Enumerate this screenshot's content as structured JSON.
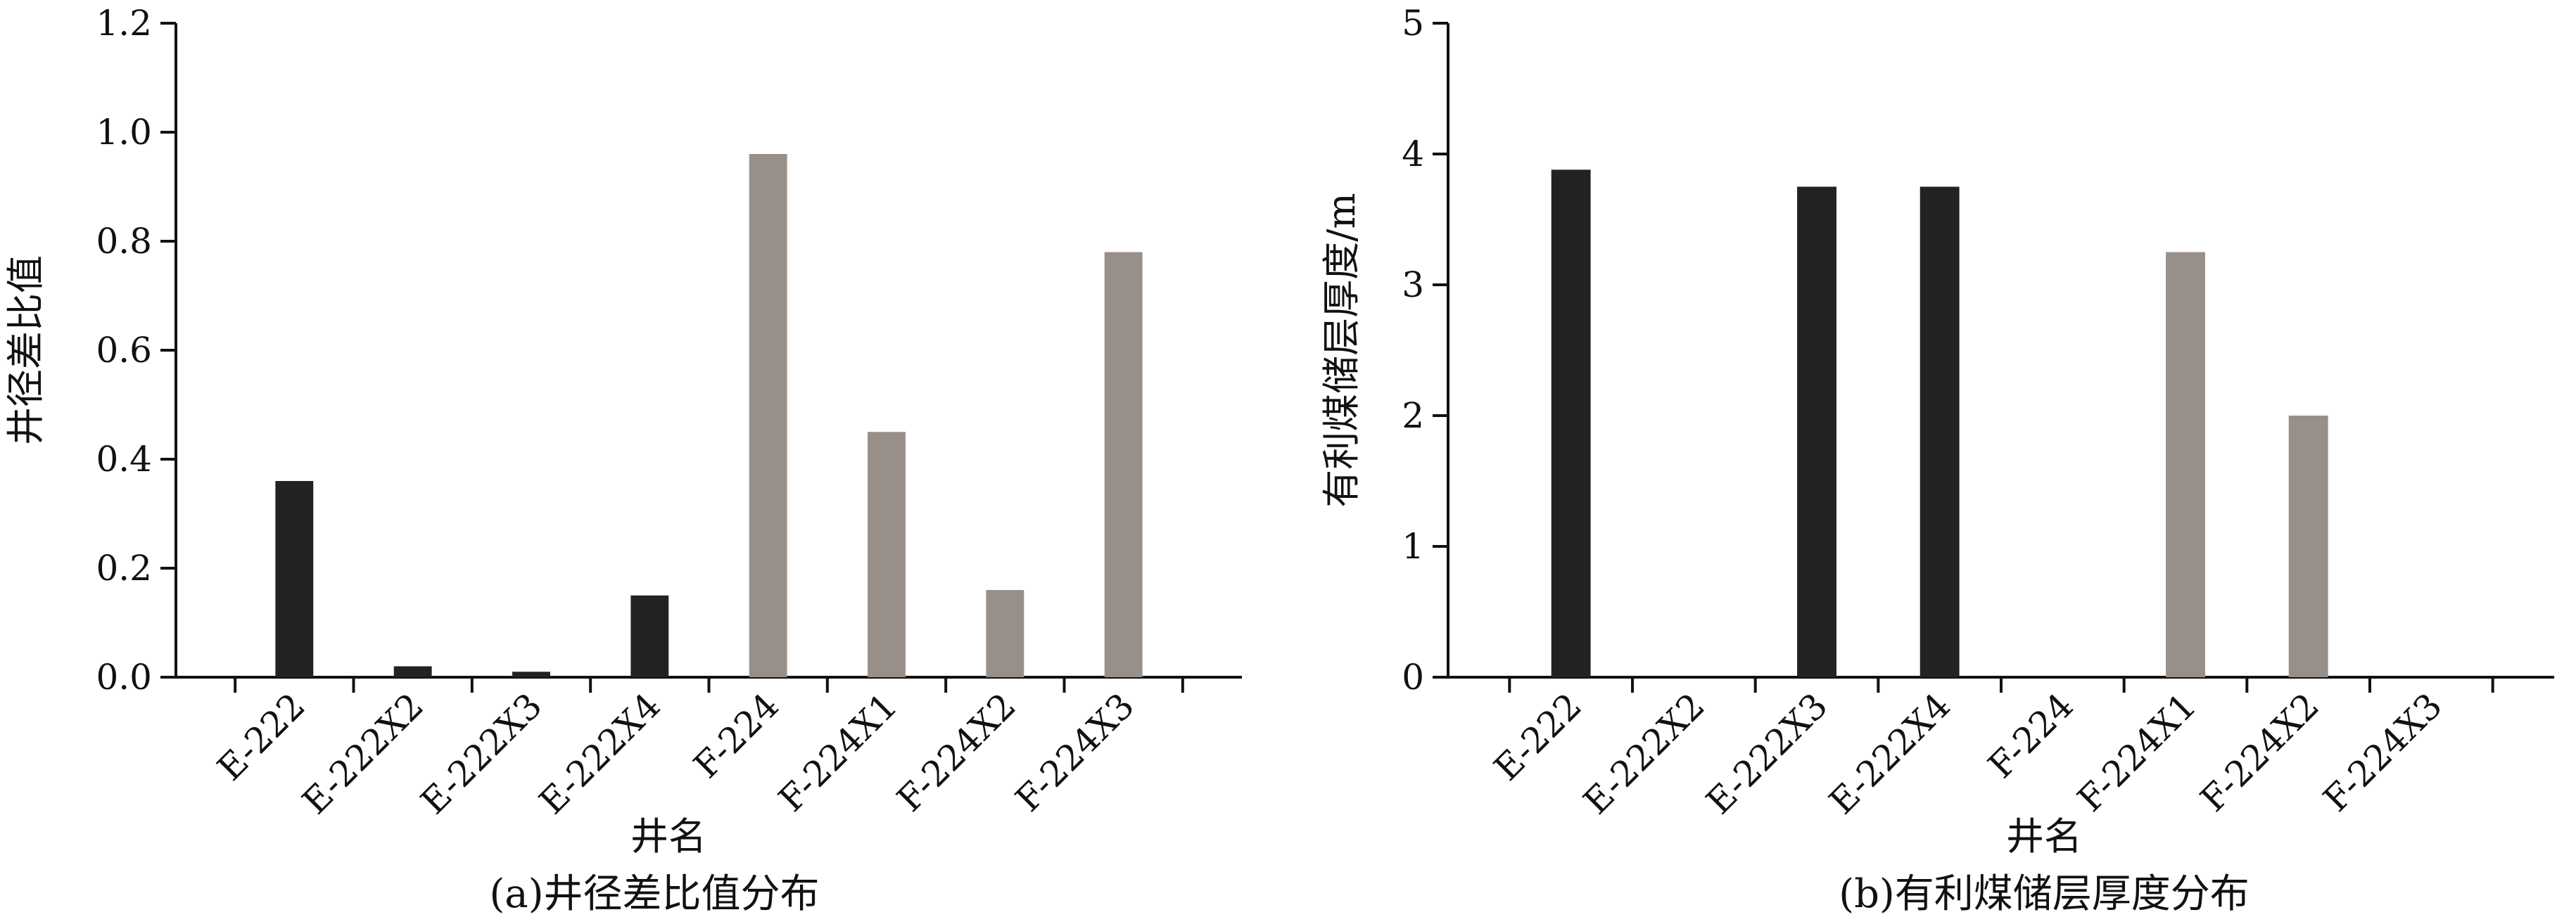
{
  "chart_data": [
    {
      "type": "bar",
      "title": "(a)井径差比值分布",
      "xlabel": "井名",
      "ylabel": "井径差比值",
      "ylim": [
        0,
        1.2
      ],
      "yticks": [
        "0.0",
        "0.2",
        "0.4",
        "0.6",
        "0.8",
        "1.0",
        "1.2"
      ],
      "categories": [
        "E-222",
        "E-222X2",
        "E-222X3",
        "E-222X4",
        "F-224",
        "F-224X1",
        "F-224X2",
        "F-224X3"
      ],
      "values": [
        0.36,
        0.02,
        0.01,
        0.15,
        0.96,
        0.45,
        0.16,
        0.78
      ],
      "colors": [
        "#222222",
        "#222222",
        "#222222",
        "#222222",
        "#998f89",
        "#998f89",
        "#998f89",
        "#998f89"
      ],
      "grid": false,
      "legend": "none"
    },
    {
      "type": "bar",
      "title": "(b)有利煤储层厚度分布",
      "xlabel": "井名",
      "ylabel": "有利煤储层厚度/m",
      "ylim": [
        0,
        5
      ],
      "yticks": [
        "0",
        "1",
        "2",
        "3",
        "4",
        "5"
      ],
      "categories": [
        "E-222",
        "E-222X2",
        "E-222X3",
        "E-222X4",
        "F-224",
        "F-224X1",
        "F-224X2",
        "F-224X3"
      ],
      "values": [
        3.88,
        0,
        3.75,
        3.75,
        0,
        3.25,
        2.0,
        0
      ],
      "colors": [
        "#222222",
        "#222222",
        "#222222",
        "#222222",
        "#998f89",
        "#998f89",
        "#998f89",
        "#998f89"
      ],
      "grid": false,
      "legend": "none"
    }
  ]
}
